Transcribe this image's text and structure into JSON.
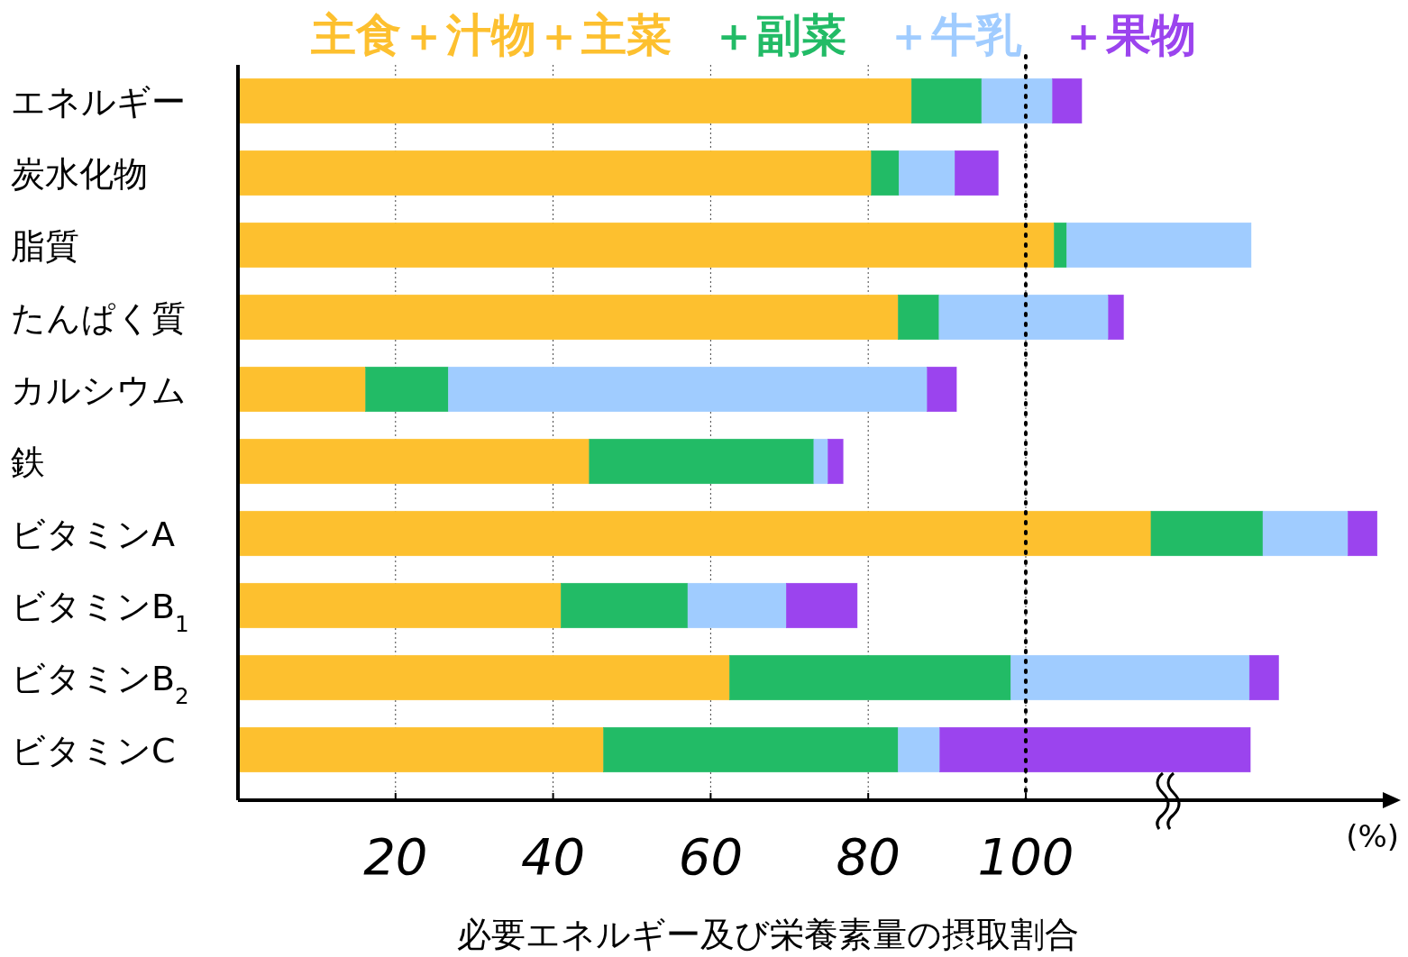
{
  "chart_data": {
    "type": "bar",
    "orientation": "horizontal",
    "stacked": true,
    "categories": [
      "エネルギー",
      "炭水化物",
      "脂質",
      "たんぱく質",
      "カルシウム",
      "鉄",
      "ビタミンA",
      "ビタミンB$_{1}$",
      "ビタミンB$_{2}$",
      "ビタミンC"
    ],
    "series": [
      {
        "name": "主食＋汁物＋主菜",
        "color": "#fdc02f",
        "values": [
          85.5,
          80.4,
          103.6,
          83.8,
          16.2,
          44.6,
          115.9,
          41.0,
          62.4,
          46.4
        ]
      },
      {
        "name": "＋副菜",
        "color": "#22bb66",
        "values": [
          8.9,
          3.5,
          1.6,
          5.2,
          10.5,
          28.5,
          14.2,
          16.1,
          35.7,
          37.4
        ]
      },
      {
        "name": "＋牛乳",
        "color": "#a0ccff",
        "values": [
          9.0,
          7.1,
          23.4,
          21.5,
          60.8,
          1.8,
          10.8,
          12.5,
          30.3,
          5.3
        ]
      },
      {
        "name": "＋果物",
        "color": "#9b44ee",
        "values": [
          3.7,
          5.5,
          0,
          1.9,
          3.7,
          1.9,
          3.7,
          9.0,
          3.7,
          39.4
        ]
      }
    ],
    "xlim": [
      0,
      146
    ],
    "xticks": [
      20,
      40,
      60,
      80,
      100
    ],
    "xlabel": "必要エネルギー及び栄養素量の摂取割合",
    "annotations": [
      "(%)"
    ],
    "ref_lines": [
      {
        "axis": "x",
        "value": 100,
        "color": "#000000",
        "line_style": "dotted"
      }
    ],
    "grid": "x",
    "legend": "top"
  }
}
